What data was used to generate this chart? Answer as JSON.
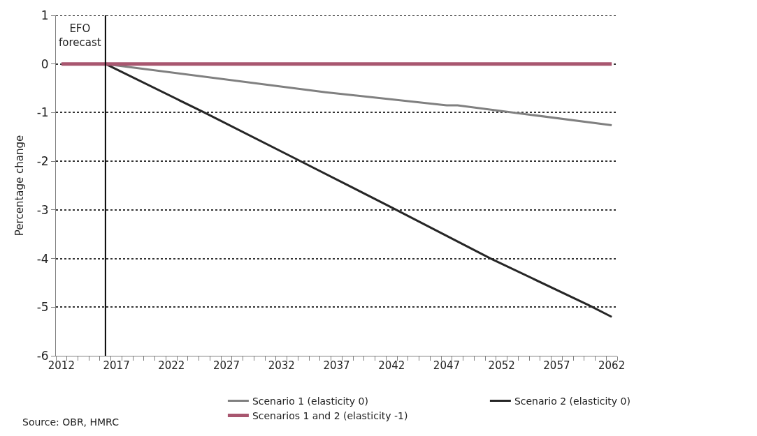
{
  "chart_data": {
    "type": "line",
    "ylabel": "Percentage change",
    "xlim": [
      2011.5,
      2062.5
    ],
    "xticks": [
      2012,
      2017,
      2022,
      2027,
      2032,
      2037,
      2042,
      2047,
      2052,
      2057,
      2062
    ],
    "ylim": [
      -6,
      1
    ],
    "yticks": [
      -6,
      -5,
      -4,
      -3,
      -2,
      -1,
      0,
      1
    ],
    "grid": "y",
    "legend": "bottom",
    "line_style": "solid",
    "marker": "none",
    "ref_lines": [
      {
        "axis": "x",
        "value": 2016,
        "label": "EFO\nforecast",
        "color": "#000000"
      }
    ],
    "annotations": [
      "Source: OBR, HMRC"
    ],
    "series": [
      {
        "name": "Scenario 1 (elasticity 0)",
        "color": "#808080",
        "x": [
          2016,
          2036,
          2047,
          2048,
          2062
        ],
        "values": [
          0,
          -0.58,
          -0.85,
          -0.85,
          -1.26
        ]
      },
      {
        "name": "Scenario 2 (elasticity 0)",
        "color": "#262626",
        "x": [
          2016,
          2025,
          2034,
          2042,
          2051,
          2060,
          2062
        ],
        "values": [
          0,
          -1,
          -2.03,
          -2.95,
          -4,
          -4.97,
          -5.2
        ]
      },
      {
        "name": "Scenarios 1 and 2 (elasticity -1)",
        "color": "#a8566f",
        "x": [
          2012,
          2062
        ],
        "values": [
          0,
          0
        ]
      }
    ]
  }
}
